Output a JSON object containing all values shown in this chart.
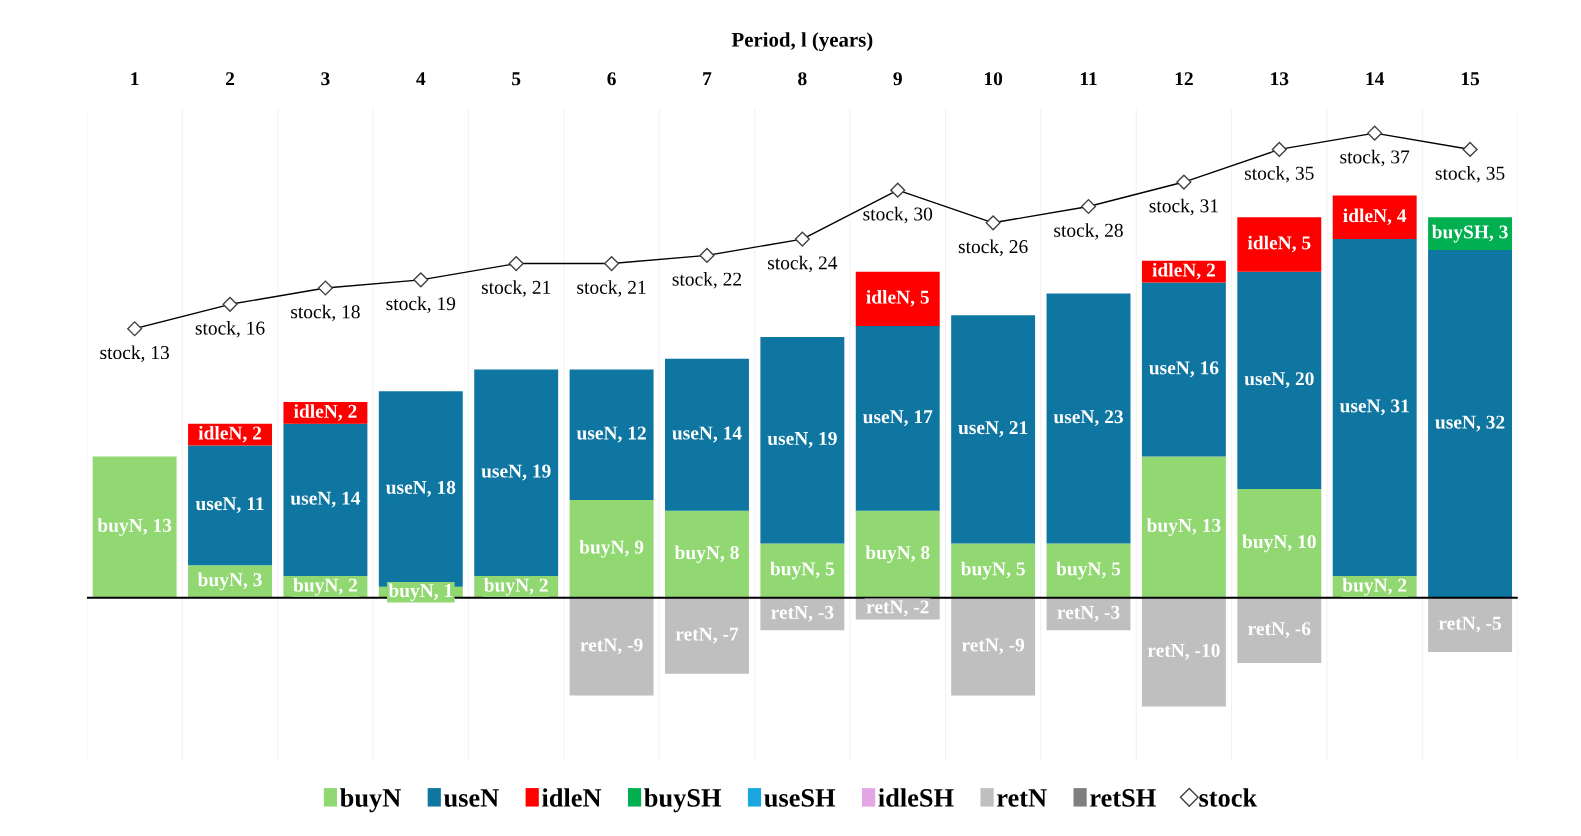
{
  "chart_data": {
    "type": "bar",
    "stacked": true,
    "xlabel": "Period, l (years)",
    "categories": [
      "1",
      "2",
      "3",
      "4",
      "5",
      "6",
      "7",
      "8",
      "9",
      "10",
      "11",
      "12",
      "13",
      "14",
      "15"
    ],
    "ylim": [
      -15,
      45
    ],
    "y2lim": [
      -40,
      40
    ],
    "tick_labels": "x",
    "legend": "bottom",
    "series": [
      {
        "name": "buyN",
        "color": "#92d872",
        "values": [
          13,
          3,
          2,
          1,
          2,
          9,
          8,
          5,
          8,
          5,
          5,
          13,
          10,
          2,
          null
        ],
        "value_labels": [
          "buyN, 13",
          "buyN, 3",
          "buyN, 2",
          "buyN, 1",
          "buyN, 2",
          "buyN, 9",
          "buyN, 8",
          "buyN, 5",
          "buyN, 8",
          "buyN, 5",
          "buyN, 5",
          "buyN, 13",
          "buyN, 10",
          "buyN, 2",
          null
        ]
      },
      {
        "name": "useN",
        "color": "#0e76a0",
        "values": [
          null,
          11,
          14,
          18,
          19,
          12,
          14,
          19,
          17,
          21,
          23,
          16,
          20,
          31,
          32
        ],
        "value_labels": [
          null,
          "useN, 11",
          "useN, 14",
          "useN, 18",
          "useN, 19",
          "useN, 12",
          "useN, 14",
          "useN, 19",
          "useN, 17",
          "useN, 21",
          "useN, 23",
          "useN, 16",
          "useN, 20",
          "useN, 31",
          "useN, 32"
        ]
      },
      {
        "name": "idleN",
        "color": "#ff0000",
        "values": [
          null,
          2,
          2,
          null,
          null,
          null,
          null,
          null,
          5,
          null,
          null,
          2,
          5,
          4,
          null
        ],
        "value_labels": [
          null,
          "idleN, 2",
          "idleN, 2",
          null,
          null,
          null,
          null,
          null,
          "idleN, 5",
          null,
          null,
          "idleN, 2",
          "idleN, 5",
          "idleN, 4",
          null
        ]
      },
      {
        "name": "buySH",
        "color": "#00b050",
        "values": [
          null,
          null,
          null,
          null,
          null,
          null,
          null,
          null,
          null,
          null,
          null,
          null,
          null,
          null,
          3
        ],
        "value_labels": [
          null,
          null,
          null,
          null,
          null,
          null,
          null,
          null,
          null,
          null,
          null,
          null,
          null,
          null,
          "buySH, 3"
        ]
      },
      {
        "name": "useSH",
        "color": "#1aa7e0",
        "values": [
          null,
          null,
          null,
          null,
          null,
          null,
          null,
          null,
          null,
          null,
          null,
          null,
          null,
          null,
          null
        ]
      },
      {
        "name": "idleSH",
        "color": "#e4a6e4",
        "values": [
          null,
          null,
          null,
          null,
          null,
          null,
          null,
          null,
          null,
          null,
          null,
          null,
          null,
          null,
          null
        ]
      },
      {
        "name": "retN",
        "color": "#bfbfbf",
        "values": [
          null,
          null,
          null,
          null,
          null,
          -9,
          -7,
          -3,
          -2,
          -9,
          -3,
          -10,
          -6,
          null,
          -5
        ],
        "value_labels": [
          null,
          null,
          null,
          null,
          null,
          "retN, -9",
          "retN, -7",
          "retN, -3",
          "retN, -2",
          "retN, -9",
          "retN, -3",
          "retN, -10",
          "retN, -6",
          null,
          "retN, -5"
        ]
      },
      {
        "name": "retSH",
        "color": "#7f7f7f",
        "values": [
          null,
          null,
          null,
          null,
          null,
          null,
          null,
          null,
          null,
          null,
          null,
          null,
          null,
          null,
          null
        ]
      },
      {
        "name": "stock",
        "type": "line",
        "axis": "y2",
        "color": "#000000",
        "marker": "diamond",
        "values": [
          13,
          16,
          18,
          19,
          21,
          21,
          22,
          24,
          30,
          26,
          28,
          31,
          35,
          37,
          35
        ],
        "value_labels": [
          "stock, 13",
          "stock, 16",
          "stock, 18",
          "stock, 19",
          "stock, 21",
          "stock, 21",
          "stock, 22",
          "stock, 24",
          "stock, 30",
          "stock, 26",
          "stock, 28",
          "stock, 31",
          "stock, 35",
          "stock, 37",
          "stock, 35"
        ]
      }
    ]
  }
}
